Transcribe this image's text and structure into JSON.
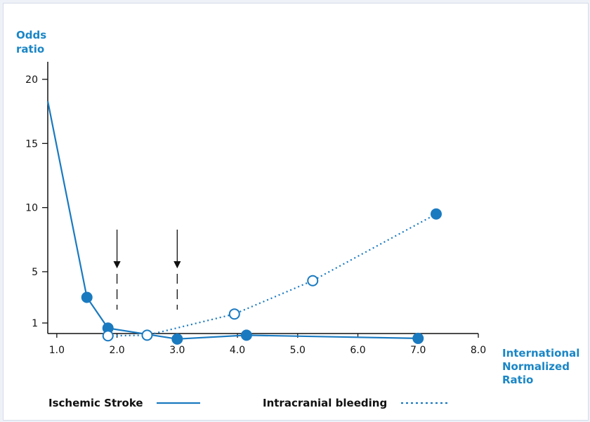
{
  "chart_data": {
    "type": "line",
    "ylabel_lines": [
      "Odds",
      "ratio"
    ],
    "xlabel_lines": [
      "International",
      "Normalized",
      "Ratio"
    ],
    "x_ticks": [
      {
        "value": 1.0,
        "label": "1.0"
      },
      {
        "value": 2.0,
        "label": "2.0"
      },
      {
        "value": 3.0,
        "label": "3.0"
      },
      {
        "value": 4.0,
        "label": "4.0"
      },
      {
        "value": 5.0,
        "label": "5.0"
      },
      {
        "value": 6.0,
        "label": "6.0"
      },
      {
        "value": 7.0,
        "label": "7.0"
      },
      {
        "value": 8.0,
        "label": "8.0"
      }
    ],
    "y_ticks": [
      {
        "value": 1,
        "label": "1"
      },
      {
        "value": 5,
        "label": "5"
      },
      {
        "value": 10,
        "label": "10"
      },
      {
        "value": 15,
        "label": "15"
      },
      {
        "value": 20,
        "label": "20"
      }
    ],
    "xlim": [
      0.85,
      8.0
    ],
    "ylim": [
      0,
      21
    ],
    "series": [
      {
        "name": "Ischemic Stroke",
        "style": "solid",
        "color": "#1a7ac0",
        "x": [
          0.85,
          1.5,
          1.85,
          3.0,
          4.15,
          7.0
        ],
        "y": [
          18.3,
          3.0,
          0.6,
          -0.25,
          0.05,
          -0.2
        ],
        "markers": [
          false,
          true,
          true,
          true,
          true,
          true
        ],
        "marker_fill": [
          "",
          "filled",
          "filled",
          "filled",
          "filled",
          "filled"
        ]
      },
      {
        "name": "Intracranial bleeding",
        "style": "dotted",
        "color": "#1a7ac0",
        "x": [
          1.85,
          2.5,
          3.95,
          5.25,
          7.3
        ],
        "y": [
          0.0,
          0.05,
          1.7,
          4.3,
          9.5
        ],
        "marker_fill": [
          "open",
          "open",
          "open",
          "open",
          "filled"
        ]
      }
    ],
    "annotations": [
      {
        "type": "arrow",
        "x": 2.0
      },
      {
        "type": "arrow",
        "x": 3.0
      }
    ],
    "legend": {
      "position": "bottom",
      "items": [
        "Ischemic Stroke",
        "Intracranial bleeding"
      ]
    }
  }
}
